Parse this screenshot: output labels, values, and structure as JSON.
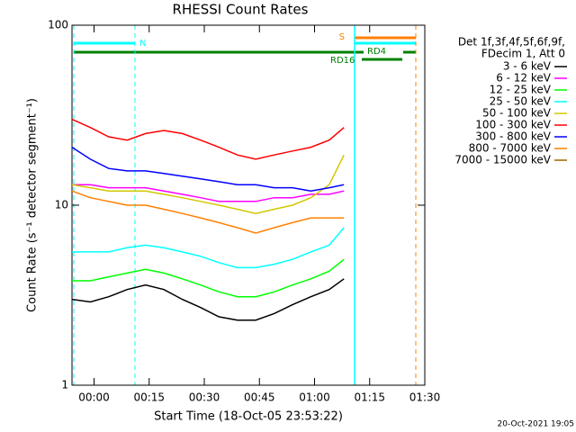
{
  "chart_data": {
    "type": "line",
    "title": "RHESSI Count Rates",
    "x_label": "Start Time (18-Oct-05 23:53:22)",
    "y_label": "Count Rate (s⁻¹ detector segment⁻¹)",
    "legend_title": [
      "Det 1f,3f,4f,5f,6f,9f,",
      "FDecim 1, Att 0"
    ],
    "footer": "20-Oct-2021 19:05",
    "annotations": [
      "N",
      "S",
      "RD4",
      "RD16"
    ],
    "log_y": true,
    "legend": "right",
    "x": [
      -6,
      -1,
      4,
      9,
      14,
      19,
      24,
      29,
      34,
      39,
      44,
      49,
      54,
      59,
      64,
      68
    ],
    "xlim": [
      -6,
      90
    ],
    "xticks": [
      {
        "value": 0,
        "label": "00:00"
      },
      {
        "value": 15,
        "label": "00:15"
      },
      {
        "value": 30,
        "label": "00:30"
      },
      {
        "value": 45,
        "label": "00:45"
      },
      {
        "value": 60,
        "label": "01:00"
      },
      {
        "value": 75,
        "label": "01:15"
      },
      {
        "value": 90,
        "label": "01:30"
      }
    ],
    "ylim": [
      1,
      100
    ],
    "yticks": [
      1,
      10,
      100
    ],
    "series": [
      {
        "name": "3 - 6 keV",
        "color": "#000000",
        "values": [
          3,
          2.9,
          3.1,
          3.4,
          3.6,
          3.4,
          3,
          2.7,
          2.4,
          2.3,
          2.3,
          2.5,
          2.8,
          3.1,
          3.4,
          3.9
        ]
      },
      {
        "name": "6 - 12 keV",
        "color": "#ff00ff",
        "values": [
          13,
          13,
          12.5,
          12.5,
          12.5,
          12,
          11.5,
          11,
          10.5,
          10.5,
          10.5,
          11,
          11,
          11.5,
          11.5,
          12
        ]
      },
      {
        "name": "12 - 25 keV",
        "color": "#00ff00",
        "values": [
          3.8,
          3.8,
          4,
          4.2,
          4.4,
          4.2,
          3.9,
          3.6,
          3.3,
          3.1,
          3.1,
          3.3,
          3.6,
          3.9,
          4.3,
          5
        ]
      },
      {
        "name": "25 - 50 keV",
        "color": "#00ffff",
        "values": [
          5.5,
          5.5,
          5.5,
          5.8,
          6,
          5.8,
          5.5,
          5.2,
          4.8,
          4.5,
          4.5,
          4.7,
          5,
          5.5,
          6,
          7.5
        ]
      },
      {
        "name": "50 - 100 keV",
        "color": "#d2c800",
        "values": [
          13,
          12.5,
          12,
          12,
          12,
          11.5,
          11,
          10.5,
          10,
          9.5,
          9,
          9.5,
          10,
          11,
          13,
          19
        ]
      },
      {
        "name": "100 - 300 keV",
        "color": "#ff0000",
        "values": [
          30,
          27,
          24,
          23,
          25,
          26,
          25,
          23,
          21,
          19,
          18,
          19,
          20,
          21,
          23,
          27
        ]
      },
      {
        "name": "300 - 800 keV",
        "color": "#0000ff",
        "values": [
          21,
          18,
          16,
          15.5,
          15.5,
          15,
          14.5,
          14,
          13.5,
          13,
          13,
          12.5,
          12.5,
          12,
          12.5,
          13
        ]
      },
      {
        "name": "800 - 7000 keV",
        "color": "#ff8000",
        "values": [
          12,
          11,
          10.5,
          10,
          10,
          9.5,
          9,
          8.5,
          8,
          7.5,
          7,
          7.5,
          8,
          8.5,
          8.5,
          8.5
        ]
      },
      {
        "name": "7000 - 15000 keV",
        "color": "#a06400",
        "values": [
          null,
          null,
          null,
          null,
          null,
          null,
          null,
          null,
          null,
          null,
          null,
          null,
          null,
          null,
          null,
          null
        ]
      }
    ]
  }
}
